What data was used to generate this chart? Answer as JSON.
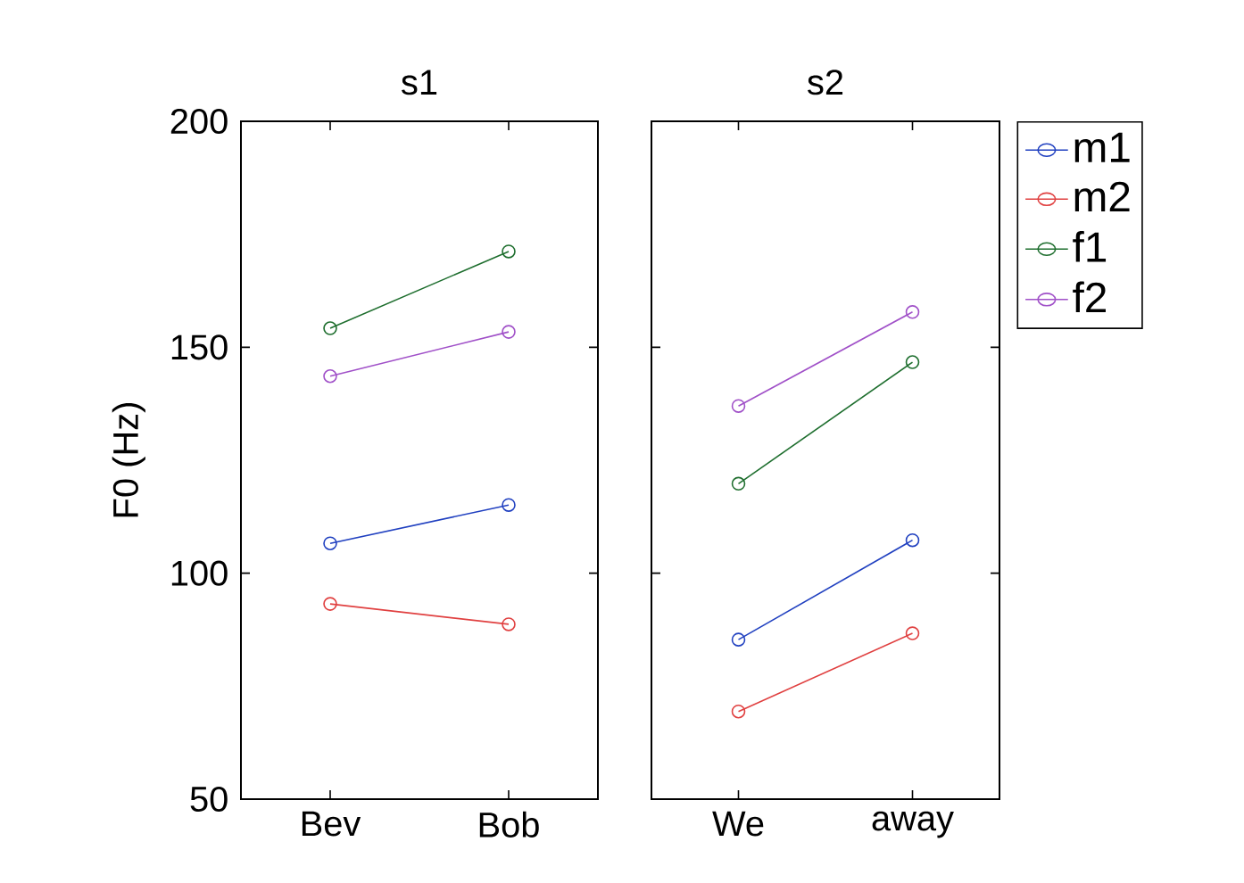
{
  "chart_data": [
    {
      "type": "line",
      "title": "s1",
      "ylabel": "F0 (Hz)",
      "categories": [
        "Bev",
        "Bob"
      ],
      "ylim": [
        50,
        200
      ],
      "yticks": [
        50,
        100,
        150,
        200
      ],
      "marker": "circle",
      "line_style": "solid",
      "series": [
        {
          "color": "#2040c0",
          "values": [
            106.6,
            115.1
          ]
        },
        {
          "color": "#e04040",
          "values": [
            93.2,
            88.7
          ]
        },
        {
          "color": "#1e6e2e",
          "values": [
            154.2,
            171.2
          ]
        },
        {
          "color": "#a050c8",
          "values": [
            143.6,
            153.4
          ]
        }
      ]
    },
    {
      "type": "line",
      "title": "s2",
      "categories": [
        "We",
        "away"
      ],
      "ylim": [
        50,
        200
      ],
      "yticks": [
        50,
        100,
        150,
        200
      ],
      "tick_labels": "x",
      "marker": "circle",
      "line_style": "solid",
      "legend": "right",
      "series": [
        {
          "name": "m1",
          "color": "#2040c0",
          "values": [
            85.3,
            107.3
          ]
        },
        {
          "name": "m2",
          "color": "#e04040",
          "values": [
            69.4,
            86.7
          ]
        },
        {
          "name": "f1",
          "color": "#1e6e2e",
          "values": [
            119.8,
            146.7
          ]
        },
        {
          "name": "f2",
          "color": "#a050c8",
          "values": [
            137.0,
            157.8
          ]
        }
      ]
    }
  ]
}
